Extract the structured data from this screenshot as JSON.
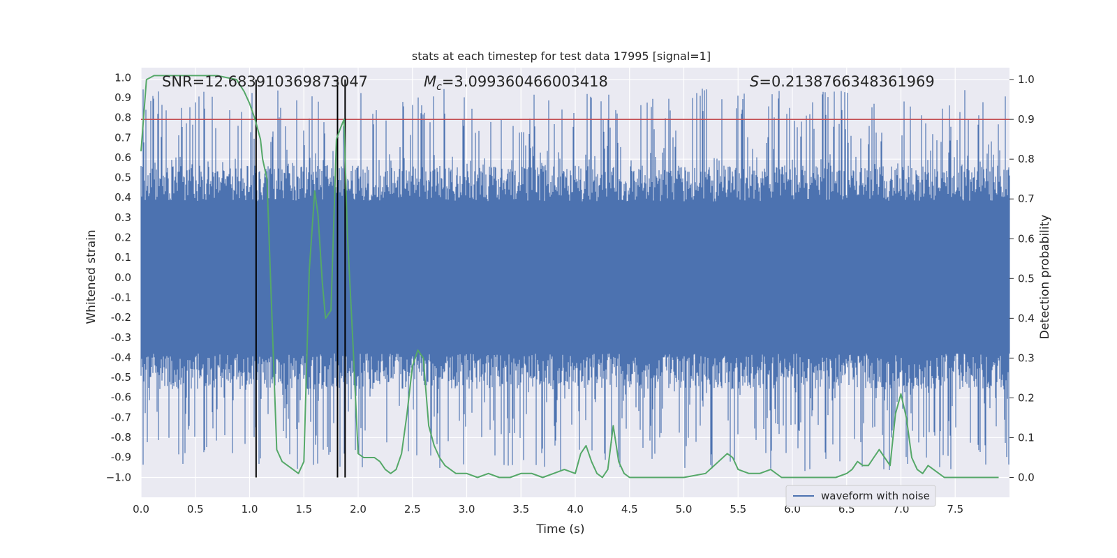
{
  "chart_data": {
    "type": "line",
    "title": "stats at each timestep for test data 17995 [signal=1]",
    "xlabel": "Time (s)",
    "ylabel": "Whitened strain",
    "y2label": "Detection probability",
    "xlim": [
      0,
      8
    ],
    "ylim": [
      -1.1,
      1.05
    ],
    "y2lim": [
      -0.05,
      1.03
    ],
    "x_ticks": [
      "0.0",
      "0.5",
      "1.0",
      "1.5",
      "2.0",
      "2.5",
      "3.0",
      "3.5",
      "4.0",
      "4.5",
      "5.0",
      "5.5",
      "6.0",
      "6.5",
      "7.0",
      "7.5"
    ],
    "y_ticks": [
      "1.0",
      "0.9",
      "0.8",
      "0.7",
      "0.6",
      "0.5",
      "0.4",
      "0.3",
      "0.2",
      "0.1",
      "0.0",
      "-0.1",
      "-0.2",
      "-0.3",
      "-0.4",
      "-0.5",
      "-0.6",
      "-0.7",
      "-0.8",
      "-0.9",
      "−1.0"
    ],
    "y2_ticks": [
      "1.0",
      "0.9",
      "0.8",
      "0.7",
      "0.6",
      "0.5",
      "0.4",
      "0.3",
      "0.2",
      "0.1",
      "0.0"
    ],
    "stats": {
      "snr": "SNR=12.683910369873047",
      "mc_symbol": "M",
      "mc_sub": "c",
      "mc_value": "=3.099360466003418",
      "s_symbol": "S",
      "s_value": "=0.2138766348361969"
    },
    "legend": {
      "label": "waveform with noise",
      "position": "lower-right"
    },
    "threshold": {
      "value": 0.9,
      "axis": "y2",
      "color": "#c44e52"
    },
    "vertical_lines": [
      1.06,
      1.81,
      1.88
    ],
    "series": [
      {
        "name": "waveform with noise",
        "axis": "y",
        "color": "#4c72b0",
        "description": "whitened strain noise, envelope approx ±0.55 with spikes to ±0.95"
      },
      {
        "name": "detection probability",
        "axis": "y2",
        "color": "#55a868",
        "x": [
          0.0,
          0.05,
          0.12,
          0.2,
          0.3,
          0.5,
          0.7,
          0.88,
          0.95,
          1.0,
          1.05,
          1.1,
          1.12,
          1.16,
          1.25,
          1.3,
          1.4,
          1.45,
          1.5,
          1.55,
          1.6,
          1.63,
          1.67,
          1.7,
          1.75,
          1.8,
          1.84,
          1.87,
          1.9,
          1.95,
          2.0,
          2.05,
          2.1,
          2.15,
          2.2,
          2.25,
          2.3,
          2.35,
          2.4,
          2.45,
          2.5,
          2.55,
          2.6,
          2.65,
          2.7,
          2.75,
          2.8,
          2.9,
          3.0,
          3.1,
          3.2,
          3.3,
          3.4,
          3.5,
          3.6,
          3.7,
          3.8,
          3.9,
          4.0,
          4.05,
          4.1,
          4.15,
          4.2,
          4.25,
          4.3,
          4.35,
          4.4,
          4.45,
          4.5,
          4.6,
          4.8,
          5.0,
          5.2,
          5.4,
          5.45,
          5.5,
          5.6,
          5.7,
          5.8,
          5.9,
          6.0,
          6.2,
          6.4,
          6.5,
          6.55,
          6.6,
          6.65,
          6.7,
          6.75,
          6.8,
          6.85,
          6.9,
          6.95,
          7.0,
          7.05,
          7.1,
          7.15,
          7.2,
          7.25,
          7.3,
          7.35,
          7.4,
          7.5,
          7.7,
          7.9
        ],
        "values": [
          0.82,
          1.0,
          1.01,
          1.01,
          1.01,
          1.01,
          1.01,
          1.0,
          0.97,
          0.94,
          0.9,
          0.85,
          0.8,
          0.75,
          0.07,
          0.04,
          0.02,
          0.01,
          0.04,
          0.52,
          0.72,
          0.66,
          0.49,
          0.4,
          0.42,
          0.85,
          0.88,
          0.9,
          0.62,
          0.35,
          0.06,
          0.05,
          0.05,
          0.05,
          0.04,
          0.02,
          0.01,
          0.02,
          0.06,
          0.16,
          0.28,
          0.32,
          0.3,
          0.13,
          0.08,
          0.05,
          0.03,
          0.01,
          0.01,
          0.0,
          0.01,
          0.0,
          0.0,
          0.01,
          0.01,
          0.0,
          0.01,
          0.02,
          0.01,
          0.06,
          0.08,
          0.04,
          0.01,
          0.0,
          0.02,
          0.13,
          0.04,
          0.01,
          0.0,
          0.0,
          0.0,
          0.0,
          0.01,
          0.06,
          0.05,
          0.02,
          0.01,
          0.01,
          0.02,
          0.0,
          0.0,
          0.0,
          0.0,
          0.01,
          0.02,
          0.04,
          0.03,
          0.03,
          0.05,
          0.07,
          0.05,
          0.03,
          0.16,
          0.21,
          0.15,
          0.05,
          0.02,
          0.01,
          0.03,
          0.02,
          0.01,
          0.0,
          0.0,
          0.0,
          0.0
        ]
      }
    ]
  }
}
